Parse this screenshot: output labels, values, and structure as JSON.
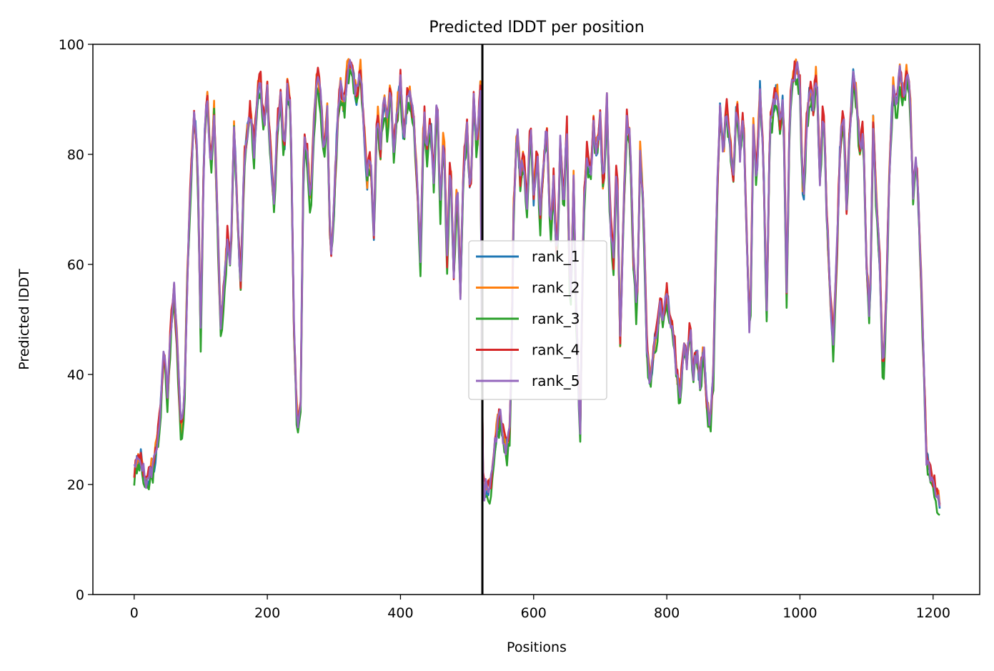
{
  "chart_data": {
    "type": "line",
    "title": "Predicted lDDT per position",
    "xlabel": "Positions",
    "ylabel": "Predicted lDDT",
    "xlim": [
      -62,
      1270
    ],
    "ylim": [
      0,
      100
    ],
    "xticks": [
      0,
      200,
      400,
      600,
      800,
      1000,
      1200
    ],
    "yticks": [
      0,
      20,
      40,
      60,
      80,
      100
    ],
    "grid": false,
    "legend_position": "center",
    "chain_break_x": 523,
    "x_start": 0,
    "x_end": 1210,
    "profile": [
      [
        0,
        22
      ],
      [
        5,
        24
      ],
      [
        10,
        25
      ],
      [
        15,
        21
      ],
      [
        20,
        20
      ],
      [
        25,
        22
      ],
      [
        30,
        24
      ],
      [
        35,
        28
      ],
      [
        40,
        34
      ],
      [
        45,
        45
      ],
      [
        50,
        35
      ],
      [
        55,
        48
      ],
      [
        60,
        55
      ],
      [
        65,
        44
      ],
      [
        70,
        30
      ],
      [
        75,
        33
      ],
      [
        80,
        58
      ],
      [
        85,
        75
      ],
      [
        90,
        88
      ],
      [
        95,
        80
      ],
      [
        100,
        47
      ],
      [
        105,
        82
      ],
      [
        110,
        90
      ],
      [
        115,
        77
      ],
      [
        120,
        88
      ],
      [
        125,
        68
      ],
      [
        130,
        48
      ],
      [
        135,
        55
      ],
      [
        140,
        65
      ],
      [
        145,
        60
      ],
      [
        150,
        85
      ],
      [
        155,
        70
      ],
      [
        160,
        55
      ],
      [
        165,
        78
      ],
      [
        170,
        84
      ],
      [
        175,
        88
      ],
      [
        180,
        80
      ],
      [
        185,
        91
      ],
      [
        190,
        93
      ],
      [
        195,
        85
      ],
      [
        200,
        91
      ],
      [
        205,
        80
      ],
      [
        210,
        70
      ],
      [
        215,
        85
      ],
      [
        220,
        90
      ],
      [
        225,
        80
      ],
      [
        230,
        92
      ],
      [
        235,
        88
      ],
      [
        240,
        48
      ],
      [
        245,
        30
      ],
      [
        250,
        35
      ],
      [
        255,
        85
      ],
      [
        260,
        80
      ],
      [
        265,
        70
      ],
      [
        270,
        85
      ],
      [
        275,
        95
      ],
      [
        280,
        90
      ],
      [
        285,
        80
      ],
      [
        290,
        88
      ],
      [
        295,
        60
      ],
      [
        300,
        70
      ],
      [
        305,
        85
      ],
      [
        310,
        92
      ],
      [
        315,
        88
      ],
      [
        320,
        95
      ],
      [
        325,
        96
      ],
      [
        330,
        93
      ],
      [
        335,
        90
      ],
      [
        340,
        95
      ],
      [
        345,
        85
      ],
      [
        350,
        75
      ],
      [
        355,
        80
      ],
      [
        360,
        65
      ],
      [
        365,
        88
      ],
      [
        370,
        80
      ],
      [
        375,
        90
      ],
      [
        380,
        85
      ],
      [
        385,
        92
      ],
      [
        390,
        80
      ],
      [
        395,
        88
      ],
      [
        400,
        93
      ],
      [
        405,
        82
      ],
      [
        410,
        90
      ],
      [
        415,
        91
      ],
      [
        420,
        85
      ],
      [
        425,
        75
      ],
      [
        430,
        60
      ],
      [
        435,
        88
      ],
      [
        440,
        80
      ],
      [
        445,
        86
      ],
      [
        450,
        75
      ],
      [
        455,
        90
      ],
      [
        460,
        70
      ],
      [
        465,
        85
      ],
      [
        470,
        60
      ],
      [
        475,
        80
      ],
      [
        480,
        58
      ],
      [
        485,
        75
      ],
      [
        490,
        55
      ],
      [
        495,
        78
      ],
      [
        500,
        85
      ],
      [
        505,
        72
      ],
      [
        510,
        90
      ],
      [
        515,
        80
      ],
      [
        520,
        93
      ],
      [
        523,
        22
      ],
      [
        525,
        18
      ],
      [
        530,
        20
      ],
      [
        535,
        19
      ],
      [
        540,
        24
      ],
      [
        545,
        30
      ],
      [
        550,
        32
      ],
      [
        555,
        28
      ],
      [
        560,
        26
      ],
      [
        565,
        30
      ],
      [
        570,
        70
      ],
      [
        575,
        85
      ],
      [
        580,
        75
      ],
      [
        585,
        80
      ],
      [
        590,
        70
      ],
      [
        595,
        85
      ],
      [
        600,
        72
      ],
      [
        605,
        80
      ],
      [
        610,
        68
      ],
      [
        615,
        78
      ],
      [
        620,
        85
      ],
      [
        625,
        65
      ],
      [
        630,
        75
      ],
      [
        635,
        60
      ],
      [
        640,
        82
      ],
      [
        645,
        70
      ],
      [
        650,
        85
      ],
      [
        655,
        50
      ],
      [
        660,
        75
      ],
      [
        665,
        45
      ],
      [
        670,
        30
      ],
      [
        675,
        70
      ],
      [
        680,
        80
      ],
      [
        685,
        75
      ],
      [
        690,
        85
      ],
      [
        695,
        80
      ],
      [
        700,
        86
      ],
      [
        705,
        72
      ],
      [
        710,
        90
      ],
      [
        715,
        68
      ],
      [
        720,
        60
      ],
      [
        725,
        80
      ],
      [
        730,
        45
      ],
      [
        735,
        70
      ],
      [
        740,
        86
      ],
      [
        745,
        82
      ],
      [
        750,
        60
      ],
      [
        755,
        50
      ],
      [
        760,
        80
      ],
      [
        765,
        70
      ],
      [
        770,
        45
      ],
      [
        775,
        38
      ],
      [
        780,
        44
      ],
      [
        785,
        48
      ],
      [
        790,
        52
      ],
      [
        795,
        50
      ],
      [
        800,
        55
      ],
      [
        805,
        50
      ],
      [
        810,
        48
      ],
      [
        815,
        40
      ],
      [
        820,
        35
      ],
      [
        825,
        45
      ],
      [
        830,
        42
      ],
      [
        835,
        48
      ],
      [
        840,
        40
      ],
      [
        845,
        44
      ],
      [
        850,
        38
      ],
      [
        855,
        45
      ],
      [
        860,
        35
      ],
      [
        865,
        30
      ],
      [
        870,
        40
      ],
      [
        875,
        70
      ],
      [
        880,
        88
      ],
      [
        885,
        80
      ],
      [
        890,
        88
      ],
      [
        895,
        82
      ],
      [
        900,
        75
      ],
      [
        905,
        90
      ],
      [
        910,
        80
      ],
      [
        915,
        88
      ],
      [
        920,
        65
      ],
      [
        925,
        45
      ],
      [
        930,
        85
      ],
      [
        935,
        75
      ],
      [
        940,
        92
      ],
      [
        945,
        80
      ],
      [
        950,
        50
      ],
      [
        955,
        85
      ],
      [
        960,
        88
      ],
      [
        965,
        92
      ],
      [
        970,
        85
      ],
      [
        975,
        90
      ],
      [
        980,
        55
      ],
      [
        985,
        88
      ],
      [
        990,
        94
      ],
      [
        995,
        96
      ],
      [
        1000,
        92
      ],
      [
        1005,
        70
      ],
      [
        1010,
        85
      ],
      [
        1015,
        92
      ],
      [
        1020,
        88
      ],
      [
        1025,
        95
      ],
      [
        1030,
        75
      ],
      [
        1035,
        90
      ],
      [
        1040,
        70
      ],
      [
        1045,
        55
      ],
      [
        1050,
        45
      ],
      [
        1055,
        60
      ],
      [
        1060,
        80
      ],
      [
        1065,
        88
      ],
      [
        1070,
        70
      ],
      [
        1075,
        85
      ],
      [
        1080,
        94
      ],
      [
        1085,
        90
      ],
      [
        1090,
        80
      ],
      [
        1095,
        85
      ],
      [
        1100,
        60
      ],
      [
        1105,
        50
      ],
      [
        1110,
        86
      ],
      [
        1115,
        70
      ],
      [
        1120,
        60
      ],
      [
        1125,
        38
      ],
      [
        1130,
        55
      ],
      [
        1135,
        80
      ],
      [
        1140,
        92
      ],
      [
        1145,
        88
      ],
      [
        1150,
        95
      ],
      [
        1155,
        90
      ],
      [
        1160,
        94
      ],
      [
        1165,
        92
      ],
      [
        1170,
        72
      ],
      [
        1175,
        80
      ],
      [
        1180,
        65
      ],
      [
        1185,
        45
      ],
      [
        1190,
        25
      ],
      [
        1195,
        22
      ],
      [
        1200,
        20
      ],
      [
        1205,
        18
      ],
      [
        1210,
        17
      ]
    ],
    "series": [
      {
        "name": "rank_1",
        "color": "#1f77b4",
        "offset": 0.0,
        "noise_seed": 1
      },
      {
        "name": "rank_2",
        "color": "#ff7f0e",
        "offset": 0.6,
        "noise_seed": 2
      },
      {
        "name": "rank_3",
        "color": "#2ca02c",
        "offset": -1.2,
        "noise_seed": 3
      },
      {
        "name": "rank_4",
        "color": "#d62728",
        "offset": 0.8,
        "noise_seed": 4
      },
      {
        "name": "rank_5",
        "color": "#9467bd",
        "offset": 0.3,
        "noise_seed": 5
      }
    ]
  }
}
